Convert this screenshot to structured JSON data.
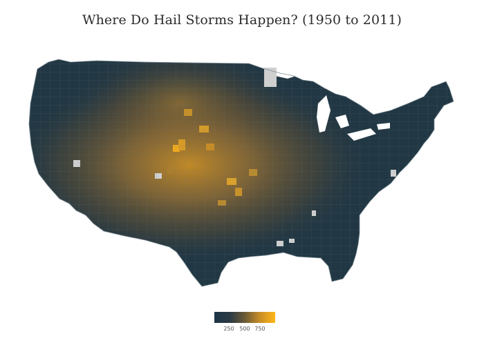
{
  "title": "Where Do Hail Storms Happen? (1950 to 2011)",
  "map": {
    "type": "choropleth",
    "region": "contiguous-united-states",
    "unit": "counties",
    "colors": {
      "low": "#1d3546",
      "mid": "#6a5a36",
      "high": "#ffb619",
      "missing": "#cfcfcf",
      "border": "#5d6f7b"
    }
  },
  "colorbar": {
    "ticks": [
      "250",
      "500",
      "750"
    ],
    "range": [
      0,
      1000
    ]
  }
}
